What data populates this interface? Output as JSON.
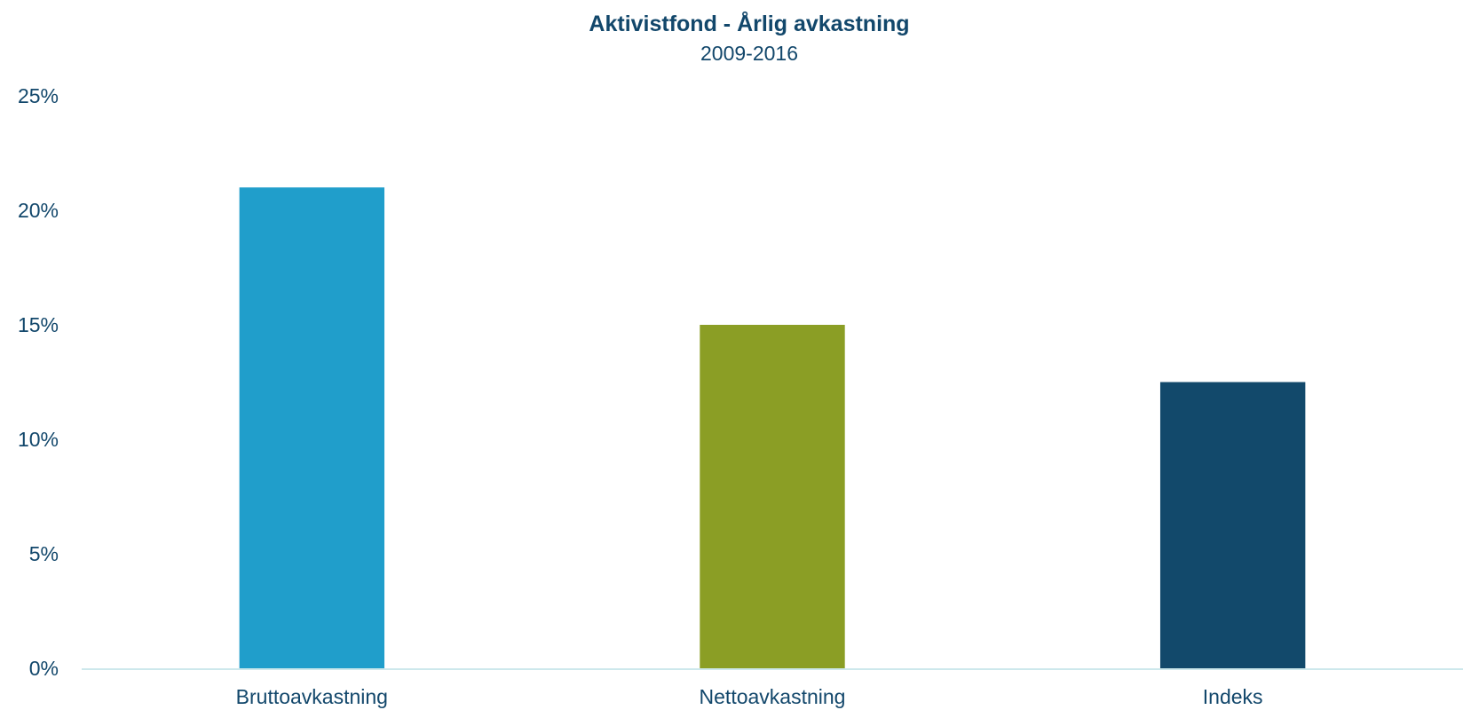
{
  "chart_data": {
    "type": "bar",
    "title": "Aktivistfond - Årlig avkastning",
    "subtitle": "2009-2016",
    "categories": [
      "Bruttoavkastning",
      "Nettoavkastning",
      "Indeks"
    ],
    "values": [
      21.0,
      15.0,
      12.5
    ],
    "value_unit": "%",
    "colors": [
      "#209ecb",
      "#8b9e25",
      "#12496b"
    ],
    "ylim": [
      0,
      25
    ],
    "yticks": [
      {
        "value": 0,
        "label": "0%"
      },
      {
        "value": 5,
        "label": "5%"
      },
      {
        "value": 10,
        "label": "10%"
      },
      {
        "value": 15,
        "label": "15%"
      },
      {
        "value": 20,
        "label": "20%"
      },
      {
        "value": 25,
        "label": "25%"
      }
    ],
    "xlabel": "",
    "ylabel": "",
    "grid": false,
    "legend": "none",
    "axis_color": "#cde8ec",
    "text_color": "#12476b"
  }
}
